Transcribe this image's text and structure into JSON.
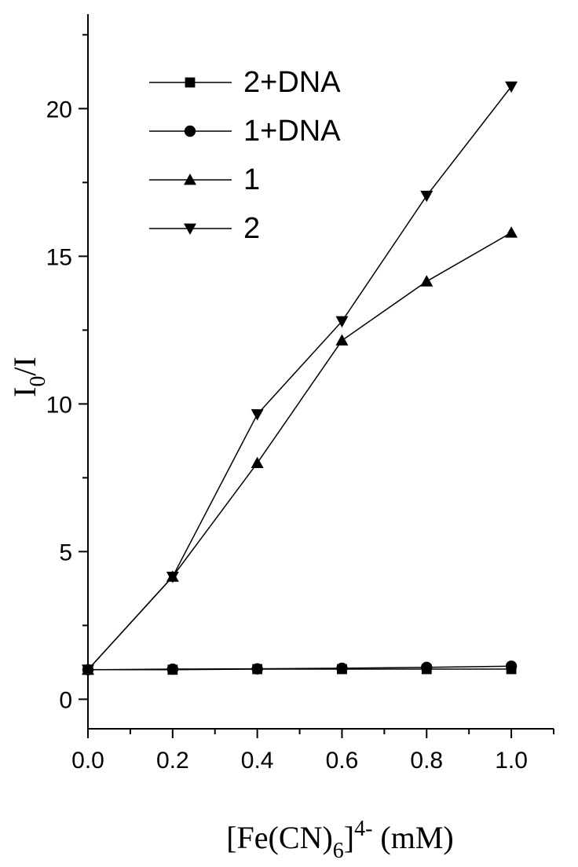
{
  "chart_data": {
    "type": "line",
    "x_label": [
      "[Fe(CN)",
      "6",
      "]",
      "4-",
      " (mM)"
    ],
    "y_label": [
      "I",
      "0",
      "/I"
    ],
    "x": [
      0,
      0.2,
      0.4,
      0.6,
      0.8,
      1.0
    ],
    "series": [
      {
        "name": "2+DNA",
        "color": "#000000",
        "marker": "square",
        "values": [
          1,
          1,
          1.02,
          1.02,
          1.02,
          1.02
        ]
      },
      {
        "name": "1+DNA",
        "color": "#000000",
        "marker": "circle",
        "values": [
          1,
          1.02,
          1.03,
          1.05,
          1.08,
          1.12
        ]
      },
      {
        "name": "1",
        "color": "#000000",
        "marker": "triangle-up",
        "values": [
          1,
          4.15,
          8.0,
          12.15,
          14.15,
          15.8
        ]
      },
      {
        "name": "2",
        "color": "#000000",
        "marker": "triangle-down",
        "values": [
          1,
          4.15,
          9.65,
          12.8,
          17.05,
          20.75
        ]
      }
    ],
    "xlim": [
      0,
      1.1
    ],
    "ylim": [
      -1,
      23.2
    ],
    "xticks": [
      {
        "value": 0,
        "label": "0.0"
      },
      0.2,
      0.4,
      0.6,
      0.8,
      {
        "value": 1,
        "label": "1.0"
      }
    ],
    "x_minor_ticks": [
      0.1,
      0.3,
      0.5,
      0.7,
      0.9,
      1.1
    ],
    "yticks": [
      0,
      5,
      10,
      15,
      20
    ],
    "y_minor_ticks": [
      2.5,
      7.5,
      12.5,
      17.5,
      22.5
    ],
    "grid": false,
    "legend": "upper-left"
  }
}
